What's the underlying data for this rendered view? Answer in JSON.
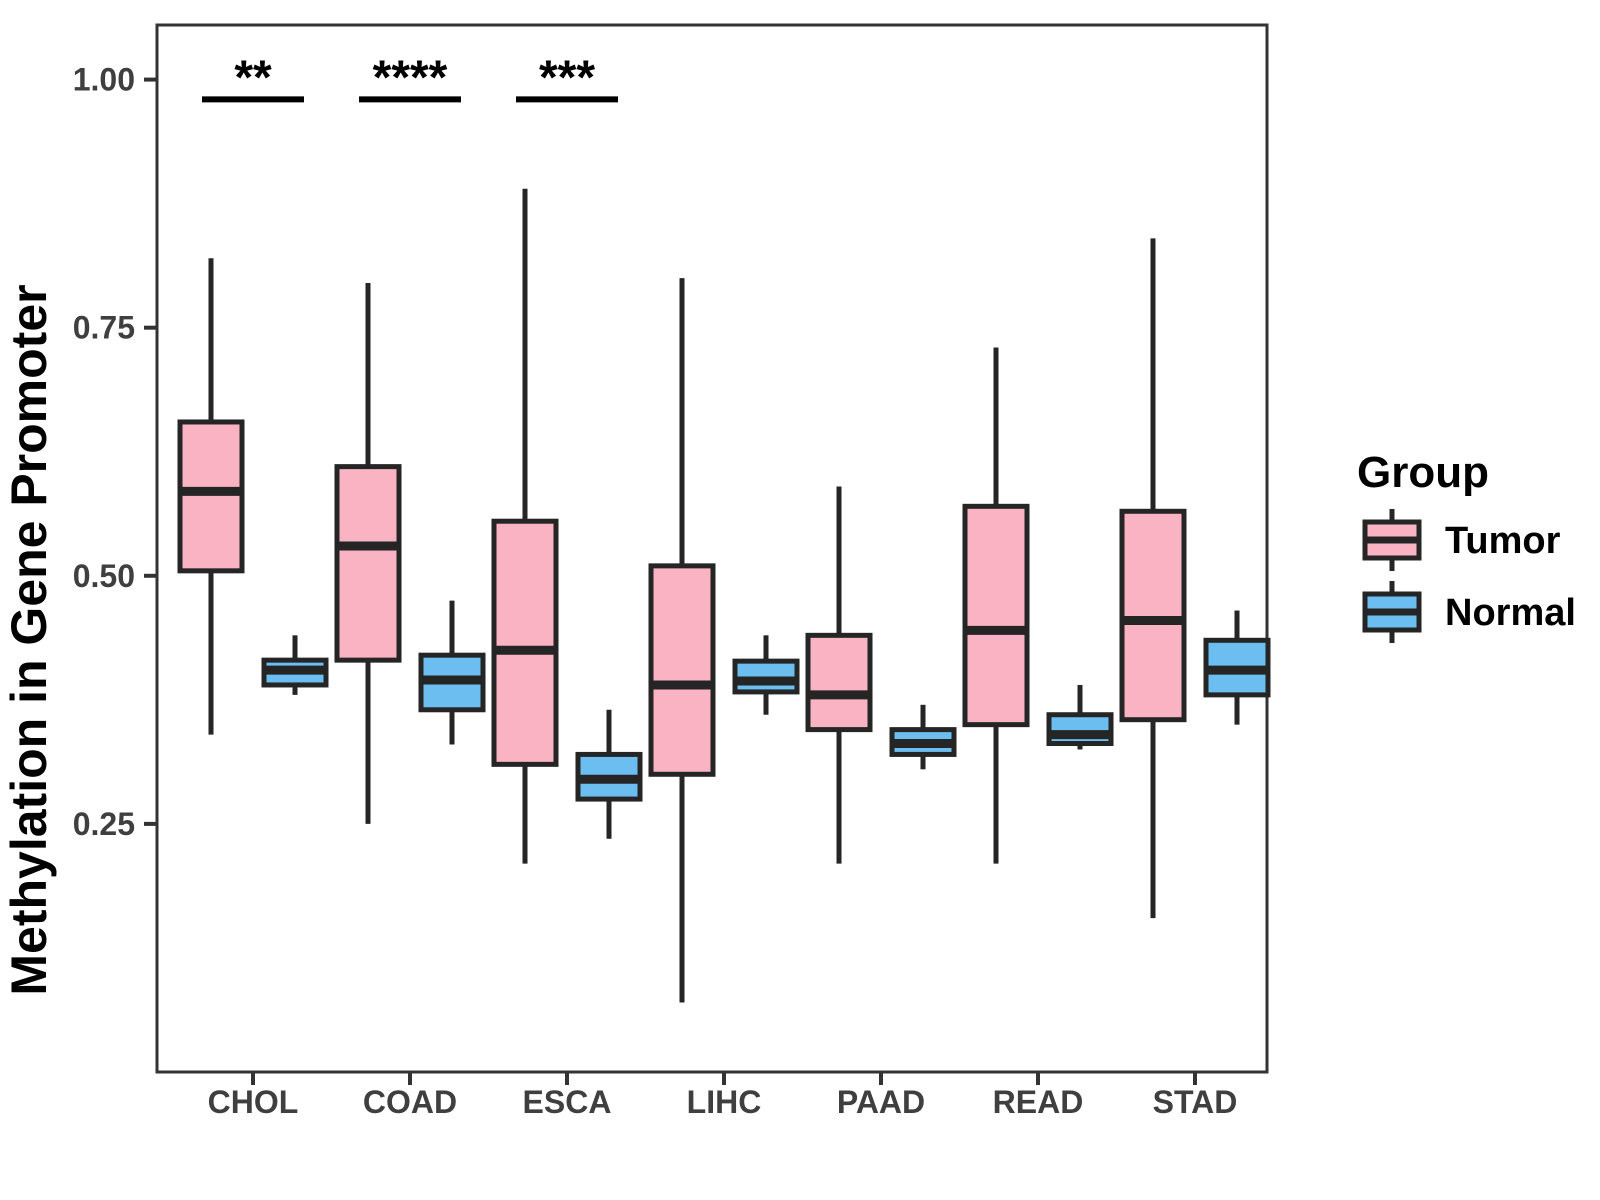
{
  "chart_data": {
    "type": "boxplot",
    "title": "",
    "xlabel": "",
    "ylabel": "Methylation in Gene Promoter",
    "ylim": [
      0,
      1.055
    ],
    "yticks": [
      0.25,
      0.5,
      0.75,
      1.0
    ],
    "ytick_labels": [
      "0.25",
      "0.50",
      "0.75",
      "1.00"
    ],
    "categories": [
      "CHOL",
      "COAD",
      "ESCA",
      "LIHC",
      "PAAD",
      "READ",
      "STAD"
    ],
    "grid": "off",
    "legend": {
      "position": "right",
      "title": "Group",
      "entries": [
        {
          "label": "Tumor",
          "color": "#F9B3C2"
        },
        {
          "label": "Normal",
          "color": "#6CBEF0"
        }
      ]
    },
    "series": [
      {
        "name": "Tumor",
        "color": "#F9B3C2",
        "boxes": [
          {
            "category": "CHOL",
            "low": 0.34,
            "q1": 0.505,
            "median": 0.585,
            "q3": 0.655,
            "high": 0.82
          },
          {
            "category": "COAD",
            "low": 0.25,
            "q1": 0.415,
            "median": 0.53,
            "q3": 0.61,
            "high": 0.795
          },
          {
            "category": "ESCA",
            "low": 0.21,
            "q1": 0.31,
            "median": 0.425,
            "q3": 0.555,
            "high": 0.89
          },
          {
            "category": "LIHC",
            "low": 0.07,
            "q1": 0.3,
            "median": 0.39,
            "q3": 0.51,
            "high": 0.8
          },
          {
            "category": "PAAD",
            "low": 0.21,
            "q1": 0.345,
            "median": 0.38,
            "q3": 0.44,
            "high": 0.59
          },
          {
            "category": "READ",
            "low": 0.21,
            "q1": 0.35,
            "median": 0.445,
            "q3": 0.57,
            "high": 0.73
          },
          {
            "category": "STAD",
            "low": 0.155,
            "q1": 0.355,
            "median": 0.455,
            "q3": 0.565,
            "high": 0.84
          }
        ]
      },
      {
        "name": "Normal",
        "color": "#6CBEF0",
        "boxes": [
          {
            "category": "CHOL",
            "low": 0.38,
            "q1": 0.39,
            "median": 0.405,
            "q3": 0.415,
            "high": 0.44
          },
          {
            "category": "COAD",
            "low": 0.33,
            "q1": 0.365,
            "median": 0.395,
            "q3": 0.42,
            "high": 0.475
          },
          {
            "category": "ESCA",
            "low": 0.235,
            "q1": 0.275,
            "median": 0.295,
            "q3": 0.32,
            "high": 0.365
          },
          {
            "category": "LIHC",
            "low": 0.36,
            "q1": 0.383,
            "median": 0.394,
            "q3": 0.414,
            "high": 0.44
          },
          {
            "category": "PAAD",
            "low": 0.305,
            "q1": 0.32,
            "median": 0.331,
            "q3": 0.345,
            "high": 0.37
          },
          {
            "category": "READ",
            "low": 0.325,
            "q1": 0.331,
            "median": 0.34,
            "q3": 0.36,
            "high": 0.39
          },
          {
            "category": "STAD",
            "low": 0.35,
            "q1": 0.38,
            "median": 0.405,
            "q3": 0.435,
            "high": 0.465
          }
        ]
      }
    ],
    "significance": [
      {
        "category": "CHOL",
        "label": "**",
        "y": 0.98
      },
      {
        "category": "COAD",
        "label": "****",
        "y": 0.98
      },
      {
        "category": "ESCA",
        "label": "***",
        "y": 0.98
      }
    ],
    "colors": {
      "box_stroke": "#252525",
      "axis": "#333333",
      "tick_text": "#3F3F3F",
      "title_text": "#000000",
      "sig": "#000000",
      "background": "#FFFFFF"
    }
  }
}
